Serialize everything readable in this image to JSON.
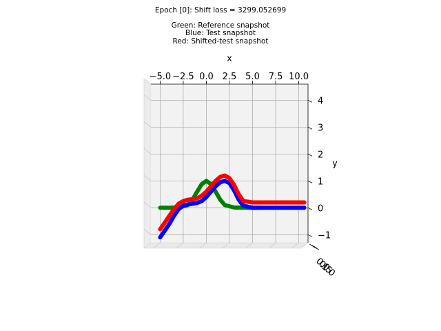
{
  "chart_data": {
    "type": "line",
    "projection": "3d",
    "title": "Epoch [0]: Shift loss = 3299.052699",
    "subtitle_lines": [
      "Green: Reference snapshot",
      "Blue: Test snapshot",
      "Red: Shifted-test snapshot"
    ],
    "xlabel": "x",
    "ylabel": "y",
    "x_ticks": [
      "−5.0",
      "−2.5",
      "0.0",
      "2.5",
      "5.0",
      "7.5",
      "10.0"
    ],
    "y_ticks": [
      "−1",
      "0",
      "1",
      "2",
      "3",
      "4"
    ],
    "z_ticks": [
      "0.0",
      "0.5",
      "1.0"
    ],
    "xlim": [
      -6,
      11
    ],
    "ylim": [
      -1.3,
      4.6
    ],
    "grid": true,
    "pane_color": "#f2f2f2",
    "series": [
      {
        "color": "#008000",
        "x": [
          -5.0,
          -4.0,
          -3.0,
          -2.0,
          -1.5,
          -1.0,
          -0.5,
          0.0,
          0.5,
          1.0,
          1.5,
          2.0,
          3.0,
          4.0,
          5.0,
          6.0
        ],
        "y": [
          0.0,
          0.0,
          0.01,
          0.1,
          0.3,
          0.6,
          0.88,
          1.0,
          0.88,
          0.6,
          0.3,
          0.1,
          0.01,
          0.0,
          0.0,
          0.0
        ]
      },
      {
        "color": "#0000ff",
        "x": [
          -5.0,
          -4.5,
          -4.0,
          -3.5,
          -3.0,
          -2.5,
          -2.0,
          -1.5,
          -1.0,
          -0.5,
          0.0,
          0.5,
          1.0,
          1.5,
          2.0,
          2.5,
          3.0,
          3.5,
          4.0,
          5.0,
          6.0,
          7.0,
          8.0,
          9.0,
          10.0,
          10.6
        ],
        "y": [
          -1.1,
          -0.85,
          -0.6,
          -0.3,
          -0.05,
          0.08,
          0.12,
          0.15,
          0.18,
          0.25,
          0.4,
          0.6,
          0.8,
          0.95,
          1.0,
          0.92,
          0.65,
          0.3,
          0.08,
          0.0,
          0.0,
          0.0,
          0.0,
          0.0,
          0.0,
          0.0
        ]
      },
      {
        "color": "#ff0000",
        "x": [
          -5.0,
          -4.5,
          -4.0,
          -3.5,
          -3.0,
          -2.5,
          -2.0,
          -1.5,
          -1.0,
          -0.5,
          0.0,
          0.5,
          1.0,
          1.5,
          2.0,
          2.5,
          3.0,
          3.5,
          4.0,
          5.0,
          6.0,
          7.0,
          8.0,
          9.0,
          10.0,
          10.6
        ],
        "y": [
          -0.8,
          -0.55,
          -0.3,
          -0.05,
          0.15,
          0.25,
          0.3,
          0.32,
          0.35,
          0.45,
          0.6,
          0.8,
          1.0,
          1.15,
          1.2,
          1.1,
          0.85,
          0.5,
          0.25,
          0.2,
          0.2,
          0.2,
          0.2,
          0.2,
          0.2,
          0.2
        ]
      }
    ]
  }
}
